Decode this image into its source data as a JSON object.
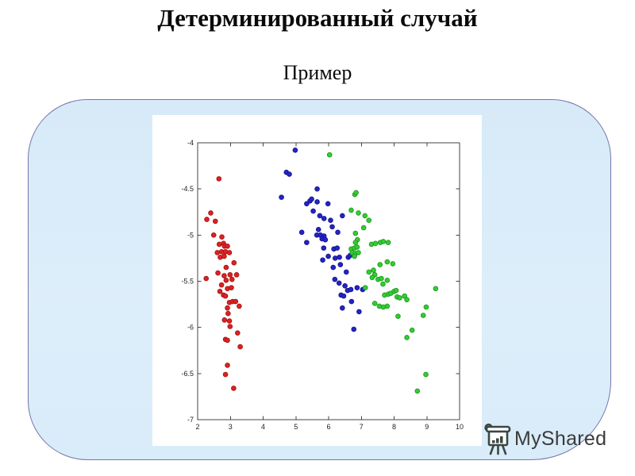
{
  "slide": {
    "title": "Детерминированный случай",
    "subtitle": "Пример"
  },
  "logo": {
    "text": "MyShared"
  },
  "colors": {
    "card_fill": "#d9ecf9",
    "card_border": "#7575ab",
    "red": "#dd2222",
    "blue": "#2424c8",
    "green": "#35cc35",
    "axis": "#444444"
  },
  "chart_data": {
    "type": "scatter",
    "title": "",
    "xlabel": "",
    "ylabel": "",
    "xlim": [
      2,
      10
    ],
    "ylim": [
      -7,
      -4
    ],
    "x_ticks": [
      2,
      3,
      4,
      5,
      6,
      7,
      8,
      9,
      10
    ],
    "x_tick_labels": [
      "2",
      "3",
      "4",
      "5",
      "6",
      "7",
      "8",
      "9",
      "10"
    ],
    "y_ticks": [
      -4,
      -4.5,
      -5,
      -5.5,
      -6,
      -6.5,
      -7
    ],
    "y_tick_labels": [
      "-4",
      "-4.5",
      "-5",
      "-5.5",
      "-6",
      "-6.5",
      "-7"
    ],
    "grid": false,
    "legend": null,
    "series": [
      {
        "name": "cluster-red",
        "color": "#dd2222",
        "edge_color": "#a81414",
        "points": [
          [
            2.65,
            -4.39
          ],
          [
            2.4,
            -4.76
          ],
          [
            2.28,
            -4.83
          ],
          [
            2.54,
            -4.85
          ],
          [
            2.49,
            -5.0
          ],
          [
            2.74,
            -5.02
          ],
          [
            2.66,
            -5.1
          ],
          [
            2.79,
            -5.09
          ],
          [
            2.82,
            -5.12
          ],
          [
            2.91,
            -5.12
          ],
          [
            2.6,
            -5.19
          ],
          [
            2.73,
            -5.18
          ],
          [
            2.85,
            -5.18
          ],
          [
            2.97,
            -5.19
          ],
          [
            2.69,
            -5.24
          ],
          [
            2.81,
            -5.23
          ],
          [
            3.11,
            -5.3
          ],
          [
            2.87,
            -5.35
          ],
          [
            2.62,
            -5.41
          ],
          [
            2.81,
            -5.44
          ],
          [
            2.99,
            -5.43
          ],
          [
            3.19,
            -5.43
          ],
          [
            2.26,
            -5.47
          ],
          [
            2.87,
            -5.49
          ],
          [
            3.05,
            -5.48
          ],
          [
            2.73,
            -5.54
          ],
          [
            2.91,
            -5.58
          ],
          [
            3.03,
            -5.57
          ],
          [
            2.68,
            -5.61
          ],
          [
            2.79,
            -5.65
          ],
          [
            2.85,
            -5.66
          ],
          [
            2.97,
            -5.73
          ],
          [
            3.07,
            -5.72
          ],
          [
            3.16,
            -5.72
          ],
          [
            3.27,
            -5.77
          ],
          [
            2.91,
            -5.79
          ],
          [
            2.93,
            -5.85
          ],
          [
            2.82,
            -5.92
          ],
          [
            2.97,
            -5.93
          ],
          [
            2.99,
            -5.99
          ],
          [
            3.22,
            -6.06
          ],
          [
            2.85,
            -6.13
          ],
          [
            2.91,
            -6.14
          ],
          [
            3.3,
            -6.21
          ],
          [
            2.91,
            -6.41
          ],
          [
            2.85,
            -6.51
          ],
          [
            3.1,
            -6.66
          ]
        ]
      },
      {
        "name": "cluster-blue",
        "color": "#2424c8",
        "edge_color": "#15158f",
        "points": [
          [
            4.98,
            -4.08
          ],
          [
            4.71,
            -4.32
          ],
          [
            4.8,
            -4.34
          ],
          [
            4.56,
            -4.59
          ],
          [
            5.65,
            -4.5
          ],
          [
            5.33,
            -4.66
          ],
          [
            5.43,
            -4.63
          ],
          [
            5.48,
            -4.61
          ],
          [
            5.65,
            -4.64
          ],
          [
            5.98,
            -4.66
          ],
          [
            5.53,
            -4.74
          ],
          [
            5.73,
            -4.79
          ],
          [
            5.86,
            -4.82
          ],
          [
            6.06,
            -4.84
          ],
          [
            6.42,
            -4.79
          ],
          [
            6.11,
            -4.91
          ],
          [
            6.28,
            -4.97
          ],
          [
            5.18,
            -4.97
          ],
          [
            5.69,
            -4.94
          ],
          [
            5.64,
            -5.0
          ],
          [
            5.75,
            -5.0
          ],
          [
            5.86,
            -5.01
          ],
          [
            5.8,
            -5.04
          ],
          [
            5.9,
            -5.05
          ],
          [
            5.33,
            -5.08
          ],
          [
            6.16,
            -5.15
          ],
          [
            6.26,
            -5.14
          ],
          [
            5.85,
            -5.14
          ],
          [
            5.99,
            -5.23
          ],
          [
            6.2,
            -5.25
          ],
          [
            6.33,
            -5.24
          ],
          [
            6.6,
            -5.24
          ],
          [
            6.66,
            -5.22
          ],
          [
            5.82,
            -5.27
          ],
          [
            6.14,
            -5.35
          ],
          [
            6.36,
            -5.32
          ],
          [
            6.54,
            -5.4
          ],
          [
            6.19,
            -5.48
          ],
          [
            6.32,
            -5.52
          ],
          [
            6.5,
            -5.55
          ],
          [
            6.58,
            -5.6
          ],
          [
            6.68,
            -5.59
          ],
          [
            6.87,
            -5.57
          ],
          [
            7.04,
            -5.59
          ],
          [
            6.38,
            -5.65
          ],
          [
            6.46,
            -5.66
          ],
          [
            6.7,
            -5.72
          ],
          [
            6.42,
            -5.79
          ],
          [
            6.93,
            -5.83
          ],
          [
            6.77,
            -6.02
          ]
        ]
      },
      {
        "name": "cluster-green",
        "color": "#35cc35",
        "edge_color": "#1d9c1d",
        "points": [
          [
            6.03,
            -4.13
          ],
          [
            6.8,
            -4.56
          ],
          [
            6.84,
            -4.54
          ],
          [
            6.69,
            -4.73
          ],
          [
            6.91,
            -4.76
          ],
          [
            7.11,
            -4.79
          ],
          [
            7.23,
            -4.84
          ],
          [
            7.07,
            -4.92
          ],
          [
            6.82,
            -4.98
          ],
          [
            6.88,
            -5.05
          ],
          [
            6.82,
            -5.08
          ],
          [
            7.31,
            -5.1
          ],
          [
            7.43,
            -5.09
          ],
          [
            7.58,
            -5.08
          ],
          [
            7.67,
            -5.07
          ],
          [
            7.82,
            -5.08
          ],
          [
            6.69,
            -5.15
          ],
          [
            6.79,
            -5.14
          ],
          [
            6.87,
            -5.13
          ],
          [
            6.72,
            -5.19
          ],
          [
            6.82,
            -5.2
          ],
          [
            6.91,
            -5.19
          ],
          [
            6.79,
            -5.23
          ],
          [
            7.79,
            -5.29
          ],
          [
            7.96,
            -5.31
          ],
          [
            7.57,
            -5.32
          ],
          [
            7.23,
            -5.4
          ],
          [
            7.37,
            -5.38
          ],
          [
            7.41,
            -5.43
          ],
          [
            7.33,
            -5.46
          ],
          [
            7.51,
            -5.48
          ],
          [
            7.61,
            -5.47
          ],
          [
            7.66,
            -5.53
          ],
          [
            7.79,
            -5.49
          ],
          [
            7.12,
            -5.57
          ],
          [
            7.71,
            -5.65
          ],
          [
            7.82,
            -5.64
          ],
          [
            7.9,
            -5.63
          ],
          [
            8.0,
            -5.61
          ],
          [
            8.06,
            -5.6
          ],
          [
            7.41,
            -5.74
          ],
          [
            7.55,
            -5.77
          ],
          [
            7.67,
            -5.78
          ],
          [
            7.79,
            -5.77
          ],
          [
            8.09,
            -5.67
          ],
          [
            8.17,
            -5.68
          ],
          [
            8.32,
            -5.66
          ],
          [
            8.39,
            -5.7
          ],
          [
            9.27,
            -5.58
          ],
          [
            8.98,
            -5.78
          ],
          [
            8.89,
            -5.87
          ],
          [
            8.12,
            -5.88
          ],
          [
            8.55,
            -6.03
          ],
          [
            8.39,
            -6.11
          ],
          [
            8.97,
            -6.51
          ],
          [
            8.71,
            -6.69
          ]
        ]
      }
    ]
  }
}
